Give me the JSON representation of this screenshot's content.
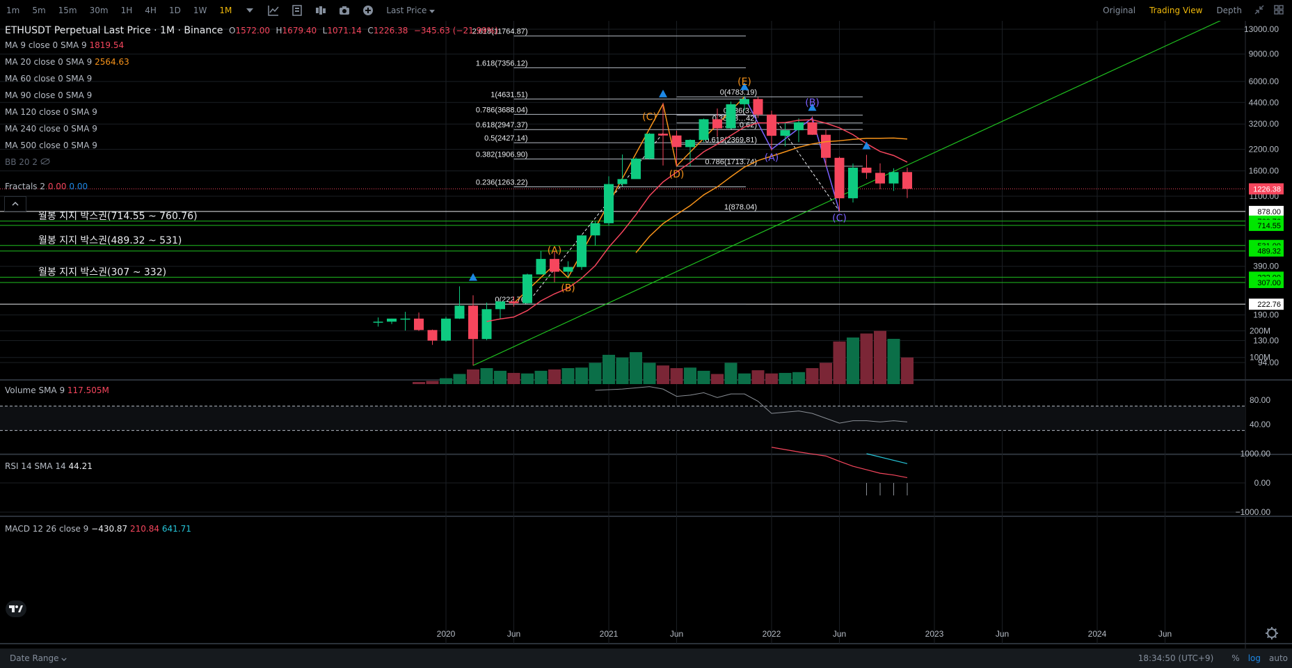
{
  "toolbar": {
    "intervals": [
      "1m",
      "5m",
      "15m",
      "30m",
      "1H",
      "4H",
      "1D",
      "1W",
      "1M"
    ],
    "active_interval": "1M",
    "price_type": "Last Price",
    "views": [
      "Original",
      "Trading View",
      "Depth"
    ],
    "active_view": "Trading View"
  },
  "legend": {
    "symbol": "ETHUSDT Perpetual Last Price · 1M · Binance",
    "open_label": "O",
    "open": "1572.00",
    "high_label": "H",
    "high": "1679.40",
    "low_label": "L",
    "low": "1071.14",
    "close_label": "C",
    "close": "1226.38",
    "change": "−345.63 (−21.99%)",
    "ma": [
      {
        "label": "MA 9 close 0 SMA 9",
        "value": "1819.54",
        "color": "#f6465d"
      },
      {
        "label": "MA 20 close 0 SMA 9",
        "value": "2564.63",
        "color": "#f7931a"
      },
      {
        "label": "MA 60 close 0 SMA 9",
        "value": "",
        "color": "#b7bdc6"
      },
      {
        "label": "MA 90 close 0 SMA 9",
        "value": "",
        "color": "#b7bdc6"
      },
      {
        "label": "MA 120 close 0 SMA 9",
        "value": "",
        "color": "#b7bdc6"
      },
      {
        "label": "MA 240 close 0 SMA 9",
        "value": "",
        "color": "#b7bdc6"
      },
      {
        "label": "MA 500 close 0 SMA 9",
        "value": "",
        "color": "#b7bdc6"
      }
    ],
    "bb": "BB 20 2",
    "fractals_label": "Fractals 2",
    "fractals_v1": "0.00",
    "fractals_v2": "0.00",
    "volume_label": "Volume SMA 9",
    "volume_value": "117.505M",
    "rsi_label": "RSI 14 SMA 14",
    "rsi_value": "44.21",
    "macd_label": "MACD 12 26 close 9",
    "macd_v1": "−430.87",
    "macd_v2": "210.84",
    "macd_v3": "641.71"
  },
  "colors": {
    "up": "#0ecb81",
    "down": "#f6465d",
    "accent": "#f0b90b",
    "ma20": "#f7931a",
    "trend": "#1fc01f",
    "support_label": "#00e600"
  },
  "chart_data": {
    "type": "candlestick",
    "timeframe": "1M",
    "log_scale": true,
    "price_axis_ticks": [
      13000,
      9000,
      6000,
      4400,
      3200,
      2200,
      1600,
      1100,
      390,
      190,
      130,
      94
    ],
    "time_axis_labels": [
      "2020",
      "Jun",
      "2021",
      "Jun",
      "2022",
      "Jun",
      "2023",
      "Jun",
      "2024",
      "Jun"
    ],
    "x_range": [
      "2018-11",
      "2024-09"
    ],
    "candles": [
      {
        "date": "2019-08",
        "o": 172,
        "h": 183,
        "l": 160,
        "c": 172
      },
      {
        "date": "2019-09",
        "o": 172,
        "h": 180,
        "l": 166,
        "c": 180
      },
      {
        "date": "2019-10",
        "o": 180,
        "h": 199,
        "l": 151,
        "c": 180
      },
      {
        "date": "2019-11",
        "o": 180,
        "h": 197,
        "l": 150,
        "c": 152
      },
      {
        "date": "2019-12",
        "o": 152,
        "h": 153,
        "l": 122,
        "c": 130
      },
      {
        "date": "2020-01",
        "o": 130,
        "h": 185,
        "l": 128,
        "c": 180
      },
      {
        "date": "2020-02",
        "o": 180,
        "h": 290,
        "l": 179,
        "c": 218
      },
      {
        "date": "2020-03",
        "o": 218,
        "h": 254,
        "l": 90,
        "c": 133
      },
      {
        "date": "2020-04",
        "o": 133,
        "h": 228,
        "l": 131,
        "c": 207
      },
      {
        "date": "2020-05",
        "o": 207,
        "h": 224,
        "l": 178,
        "c": 232
      },
      {
        "date": "2020-06",
        "o": 232,
        "h": 250,
        "l": 215,
        "c": 226
      },
      {
        "date": "2020-07",
        "o": 226,
        "h": 350,
        "l": 225,
        "c": 346
      },
      {
        "date": "2020-08",
        "o": 346,
        "h": 490,
        "l": 346,
        "c": 435
      },
      {
        "date": "2020-09",
        "o": 435,
        "h": 490,
        "l": 308,
        "c": 360
      },
      {
        "date": "2020-10",
        "o": 360,
        "h": 420,
        "l": 334,
        "c": 386
      },
      {
        "date": "2020-11",
        "o": 386,
        "h": 620,
        "l": 370,
        "c": 616
      },
      {
        "date": "2020-12",
        "o": 616,
        "h": 760,
        "l": 532,
        "c": 738
      },
      {
        "date": "2021-01",
        "o": 738,
        "h": 1476,
        "l": 714,
        "c": 1316
      },
      {
        "date": "2021-02",
        "o": 1316,
        "h": 2040,
        "l": 1270,
        "c": 1417
      },
      {
        "date": "2021-03",
        "o": 1417,
        "h": 1950,
        "l": 1430,
        "c": 1919
      },
      {
        "date": "2021-04",
        "o": 1919,
        "h": 2800,
        "l": 1890,
        "c": 2773
      },
      {
        "date": "2021-05",
        "o": 2773,
        "h": 4372,
        "l": 1731,
        "c": 2700
      },
      {
        "date": "2021-06",
        "o": 2700,
        "h": 2900,
        "l": 1717,
        "c": 2275
      },
      {
        "date": "2021-07",
        "o": 2275,
        "h": 2550,
        "l": 1706,
        "c": 2530
      },
      {
        "date": "2021-08",
        "o": 2530,
        "h": 3470,
        "l": 2450,
        "c": 3434
      },
      {
        "date": "2021-09",
        "o": 3434,
        "h": 4027,
        "l": 2650,
        "c": 3001
      },
      {
        "date": "2021-10",
        "o": 3001,
        "h": 4460,
        "l": 2970,
        "c": 4288
      },
      {
        "date": "2021-11",
        "o": 4288,
        "h": 4868,
        "l": 3900,
        "c": 4630
      },
      {
        "date": "2021-12",
        "o": 4630,
        "h": 4778,
        "l": 3500,
        "c": 3680
      },
      {
        "date": "2022-01",
        "o": 3680,
        "h": 3900,
        "l": 2159,
        "c": 2688
      },
      {
        "date": "2022-02",
        "o": 2688,
        "h": 3282,
        "l": 2300,
        "c": 2919
      },
      {
        "date": "2022-03",
        "o": 2919,
        "h": 3480,
        "l": 2449,
        "c": 3282
      },
      {
        "date": "2022-04",
        "o": 3282,
        "h": 3580,
        "l": 2725,
        "c": 2729
      },
      {
        "date": "2022-05",
        "o": 2729,
        "h": 2954,
        "l": 1700,
        "c": 1941
      },
      {
        "date": "2022-06",
        "o": 1941,
        "h": 1974,
        "l": 880,
        "c": 1067
      },
      {
        "date": "2022-07",
        "o": 1067,
        "h": 1785,
        "l": 1002,
        "c": 1678
      },
      {
        "date": "2022-08",
        "o": 1678,
        "h": 2030,
        "l": 1422,
        "c": 1554
      },
      {
        "date": "2022-09",
        "o": 1554,
        "h": 1789,
        "l": 1220,
        "c": 1328
      },
      {
        "date": "2022-10",
        "o": 1328,
        "h": 1662,
        "l": 1190,
        "c": 1572
      },
      {
        "date": "2022-11",
        "o": 1572,
        "h": 1679.4,
        "l": 1071.14,
        "c": 1226.38
      }
    ],
    "volume_axis_ticks": [
      "200M",
      "100M"
    ],
    "volume_millions": [
      8,
      12,
      22,
      38,
      55,
      60,
      50,
      42,
      40,
      50,
      55,
      60,
      62,
      80,
      110,
      100,
      120,
      80,
      70,
      60,
      62,
      50,
      38,
      80,
      40,
      52,
      40,
      42,
      45,
      60,
      80,
      160,
      175,
      190,
      200,
      170,
      100
    ],
    "rsi_axis_ticks": [
      "80.00",
      "40.00"
    ],
    "rsi": [
      {
        "date": "2020-12",
        "v": 96
      },
      {
        "date": "2021-01",
        "v": 97
      },
      {
        "date": "2021-02",
        "v": 98
      },
      {
        "date": "2021-03",
        "v": 100
      },
      {
        "date": "2021-04",
        "v": 102
      },
      {
        "date": "2021-05",
        "v": 98
      },
      {
        "date": "2021-06",
        "v": 86
      },
      {
        "date": "2021-07",
        "v": 88
      },
      {
        "date": "2021-08",
        "v": 92
      },
      {
        "date": "2021-09",
        "v": 84
      },
      {
        "date": "2021-10",
        "v": 90
      },
      {
        "date": "2021-11",
        "v": 90
      },
      {
        "date": "2021-12",
        "v": 78
      },
      {
        "date": "2022-01",
        "v": 58
      },
      {
        "date": "2022-02",
        "v": 60
      },
      {
        "date": "2022-03",
        "v": 62
      },
      {
        "date": "2022-04",
        "v": 58
      },
      {
        "date": "2022-05",
        "v": 50
      },
      {
        "date": "2022-06",
        "v": 42
      },
      {
        "date": "2022-07",
        "v": 46
      },
      {
        "date": "2022-08",
        "v": 46
      },
      {
        "date": "2022-09",
        "v": 44
      },
      {
        "date": "2022-10",
        "v": 46
      },
      {
        "date": "2022-11",
        "v": 44
      }
    ],
    "macd_axis_ticks": [
      "1000.00",
      "0.00",
      "−1000.00"
    ],
    "price_labels": [
      {
        "value": "1226.38",
        "bg": "#f6465d",
        "fg": "#ffffff"
      },
      {
        "value": "878.00",
        "bg": "#ffffff",
        "fg": "#000000"
      },
      {
        "value": "760.76",
        "bg": "#00e600",
        "fg": "#000000"
      },
      {
        "value": "714.55",
        "bg": "#00e600",
        "fg": "#000000"
      },
      {
        "value": "531.00",
        "bg": "#00e600",
        "fg": "#000000"
      },
      {
        "value": "489.32",
        "bg": "#00e600",
        "fg": "#000000"
      },
      {
        "value": "332.00",
        "bg": "#00e600",
        "fg": "#000000"
      },
      {
        "value": "307.00",
        "bg": "#00e600",
        "fg": "#000000"
      },
      {
        "value": "222.76",
        "bg": "#ffffff",
        "fg": "#000000"
      }
    ],
    "support_zones": [
      {
        "label": "월봉 지지 박스권(714.55 ~ 760.76)",
        "low": 714.55,
        "high": 760.76
      },
      {
        "label": "월봉 지지 박스권(489.32 ~ 531)",
        "low": 489.32,
        "high": 531
      },
      {
        "label": "월봉 지지 박스권(307 ~ 332)",
        "low": 307,
        "high": 332
      }
    ],
    "horizontal_levels": [
      222.76,
      878
    ],
    "fib_left": [
      {
        "label": "2.618(11764.87)",
        "price": 11764.87
      },
      {
        "label": "1.618(7356.12)",
        "price": 7356.12
      },
      {
        "label": "1(4631.51)",
        "price": 4631.51
      },
      {
        "label": "0.786(3688.04)",
        "price": 3688.04
      },
      {
        "label": "0.618(2947.37)",
        "price": 2947.37
      },
      {
        "label": "0.5(2427.14)",
        "price": 2427.14
      },
      {
        "label": "0.382(1906.90)",
        "price": 1906.9
      },
      {
        "label": "0.236(1263.22)",
        "price": 1263.22
      },
      {
        "label": "0(222.76)",
        "price": 222.76
      }
    ],
    "fib_right": [
      {
        "label": "0(4783.19)",
        "price": 4783.19
      },
      {
        "label": "0.236(3…",
        "price": 3650
      },
      {
        "label": "0.382(3…42)",
        "price": 3250
      },
      {
        "label": "0.…(…0.62)",
        "price": 2950
      },
      {
        "label": "0.618(2369.81)",
        "price": 2369.81
      },
      {
        "label": "0.786(1713.74)",
        "price": 1713.74
      },
      {
        "label": "1(878.04)",
        "price": 878.04
      }
    ],
    "wave_labels": [
      "(A)",
      "(B)",
      "(C)",
      "(D)",
      "(E)",
      "(A)",
      "(B)",
      "(C)"
    ]
  },
  "status": {
    "date_range": "Date Range",
    "time": "18:34:50 (UTC+9)",
    "percent": "%",
    "log": "log",
    "auto": "auto"
  }
}
